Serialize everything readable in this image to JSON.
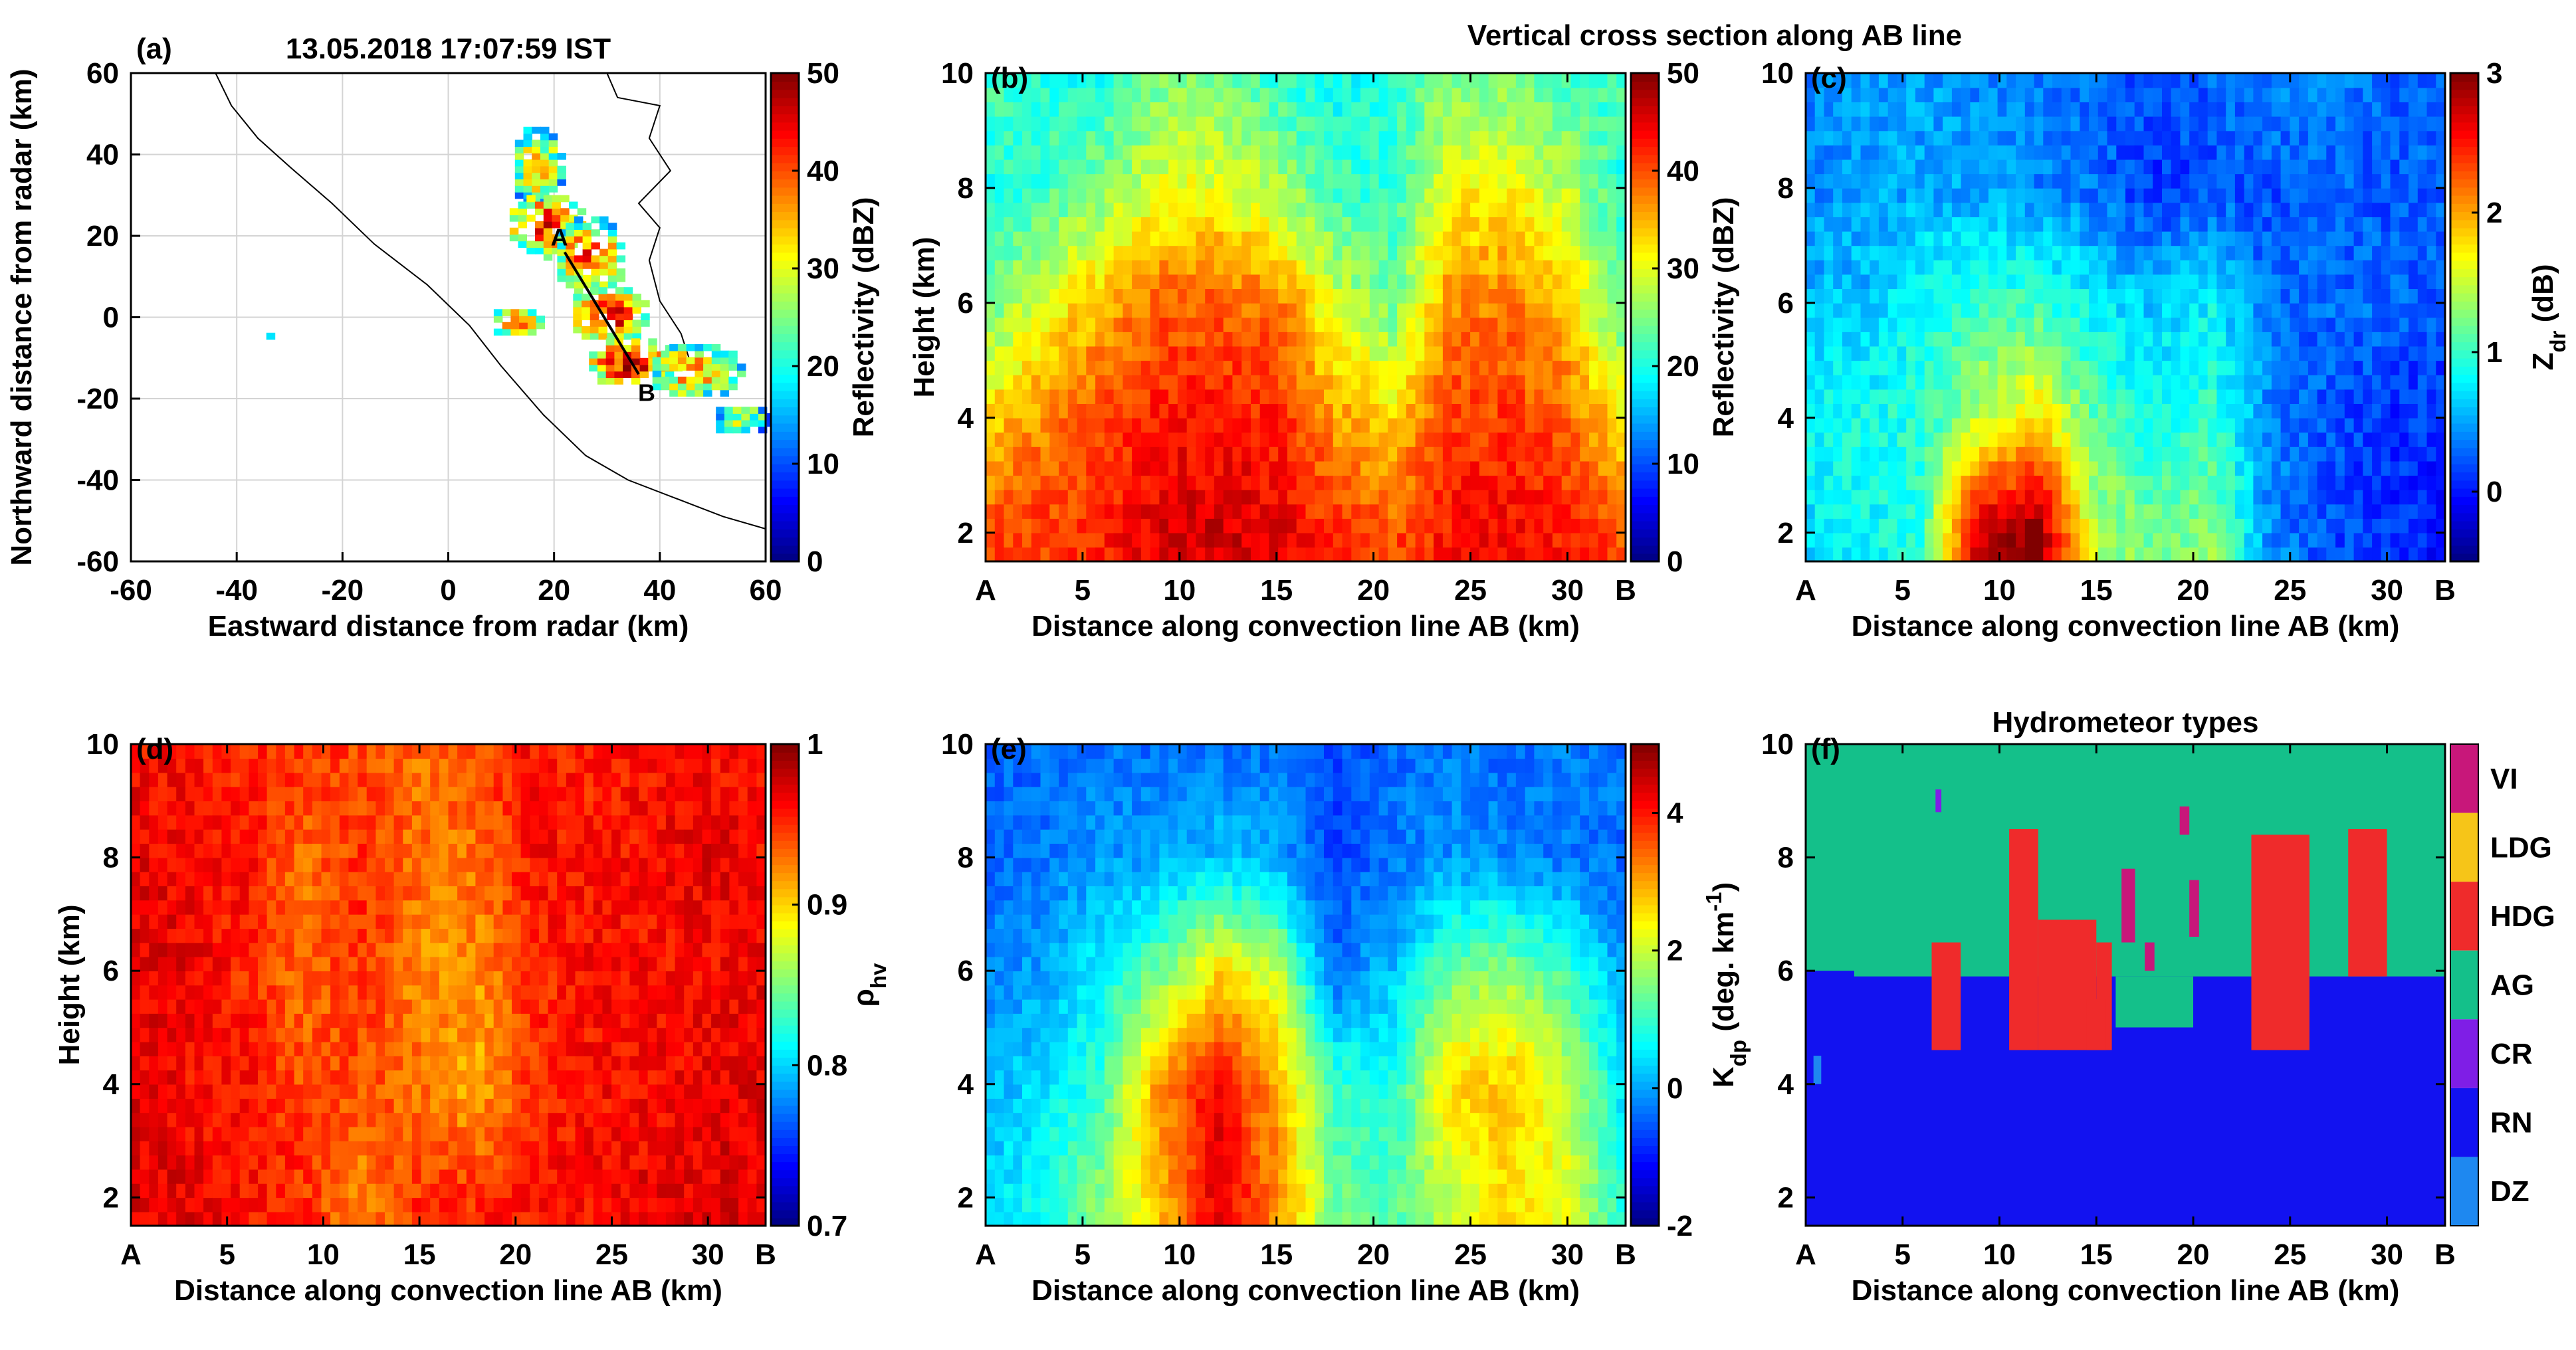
{
  "figure": {
    "cross_section_title": "Vertical cross section along AB line"
  },
  "chart_data": [
    {
      "panel": "(a)",
      "type": "heatmap",
      "title": "13.05.2018 17:07:59 IST",
      "xlabel": "Eastward distance from radar (km)",
      "ylabel": "Northward distance from radar (km)",
      "xlim": [
        -60,
        60
      ],
      "ylim": [
        -60,
        60
      ],
      "xticks": [
        -60,
        -40,
        -20,
        0,
        20,
        40,
        60
      ],
      "yticks": [
        -60,
        -40,
        -20,
        0,
        20,
        40,
        60
      ],
      "grid": true,
      "line_labels": [
        "A",
        "B"
      ],
      "line_endpoints": [
        [
          22,
          16
        ],
        [
          36,
          -14
        ]
      ],
      "colorbar": {
        "label": "Reflectivity (dBZ)",
        "min": 0,
        "max": 50,
        "ticks": [
          "0",
          "10",
          "20",
          "30",
          "40",
          "50"
        ]
      },
      "echoes": [
        {
          "x": 16,
          "y": 36,
          "rx": 5,
          "ry": 10,
          "dbz": 32
        },
        {
          "x": 18,
          "y": 22,
          "rx": 8,
          "ry": 8,
          "dbz": 40
        },
        {
          "x": 26,
          "y": 14,
          "rx": 7,
          "ry": 10,
          "dbz": 38
        },
        {
          "x": 12,
          "y": -2,
          "rx": 5,
          "ry": 4,
          "dbz": 36
        },
        {
          "x": 30,
          "y": 0,
          "rx": 8,
          "ry": 7,
          "dbz": 42
        },
        {
          "x": 34,
          "y": -12,
          "rx": 9,
          "ry": 6,
          "dbz": 44
        },
        {
          "x": 46,
          "y": -14,
          "rx": 9,
          "ry": 7,
          "dbz": 34
        },
        {
          "x": 55,
          "y": -26,
          "rx": 6,
          "ry": 4,
          "dbz": 26
        },
        {
          "x": -35,
          "y": -6,
          "rx": 1,
          "ry": 1,
          "dbz": 20
        }
      ]
    },
    {
      "panel": "(b)",
      "type": "heatmap",
      "variable": "Reflectivity",
      "xlabel": "Distance along convection line AB (km)",
      "ylabel": "Height (km)",
      "xlim": [
        0,
        33
      ],
      "ylim": [
        1.5,
        10
      ],
      "xticklabels": [
        "A",
        "5",
        "10",
        "15",
        "20",
        "25",
        "30",
        "B"
      ],
      "yticks": [
        2,
        4,
        6,
        8,
        10
      ],
      "colorbar": {
        "label": "Reflectivity (dBZ)",
        "min": 0,
        "max": 50,
        "ticks": [
          "0",
          "10",
          "20",
          "30",
          "40",
          "50"
        ]
      },
      "heights_km": [
        2,
        4,
        6,
        8,
        10
      ],
      "distance_km": [
        0,
        3,
        6,
        9,
        12,
        15,
        18,
        21,
        24,
        27,
        30,
        33
      ],
      "values": [
        [
          40,
          41,
          42,
          45,
          46,
          45,
          42,
          40,
          43,
          44,
          42,
          40
        ],
        [
          33,
          37,
          40,
          43,
          43,
          42,
          36,
          33,
          41,
          41,
          39,
          32
        ],
        [
          24,
          30,
          35,
          39,
          39,
          38,
          29,
          24,
          37,
          38,
          34,
          22
        ],
        [
          20,
          22,
          25,
          30,
          30,
          27,
          22,
          21,
          31,
          31,
          28,
          20
        ],
        [
          22,
          20,
          20,
          24,
          25,
          21,
          19,
          21,
          25,
          24,
          21,
          22
        ]
      ]
    },
    {
      "panel": "(c)",
      "type": "heatmap",
      "variable": "Zdr",
      "xlabel": "Distance along convection line AB (km)",
      "ylabel": "",
      "xlim": [
        0,
        33
      ],
      "ylim": [
        1.5,
        10
      ],
      "xticklabels": [
        "A",
        "5",
        "10",
        "15",
        "20",
        "25",
        "30",
        "B"
      ],
      "yticks": [
        2,
        4,
        6,
        8,
        10
      ],
      "colorbar": {
        "label": "Z",
        "label_sub": "dr",
        "label_unit": " (dB)",
        "min": -0.5,
        "max": 3,
        "ticks": [
          "0",
          "1",
          "2",
          "3"
        ]
      },
      "heights_km": [
        2,
        4,
        6,
        8,
        10
      ],
      "distance_km": [
        0,
        3,
        6,
        9,
        12,
        15,
        18,
        21,
        24,
        27,
        30,
        33
      ],
      "values": [
        [
          0.7,
          0.8,
          1.0,
          2.8,
          3.0,
          1.4,
          1.2,
          1.3,
          0.4,
          0.2,
          0.1,
          0.0
        ],
        [
          0.8,
          0.9,
          0.9,
          1.5,
          1.8,
          1.1,
          0.9,
          1.0,
          0.4,
          0.2,
          0.1,
          0.1
        ],
        [
          0.6,
          0.6,
          0.9,
          1.0,
          1.0,
          0.8,
          0.6,
          0.8,
          0.3,
          0.3,
          0.3,
          0.2
        ],
        [
          0.4,
          0.5,
          0.5,
          0.5,
          0.4,
          0.3,
          0.1,
          0.2,
          0.2,
          0.3,
          0.2,
          0.3
        ],
        [
          0.4,
          0.5,
          0.5,
          0.4,
          0.4,
          0.3,
          0.2,
          0.3,
          0.4,
          0.4,
          0.3,
          0.3
        ]
      ]
    },
    {
      "panel": "(d)",
      "type": "heatmap",
      "variable": "rho_hv",
      "xlabel": "Distance along convection line AB (km)",
      "ylabel": "Height (km)",
      "xlim": [
        0,
        33
      ],
      "ylim": [
        1.5,
        10
      ],
      "xticklabels": [
        "A",
        "5",
        "10",
        "15",
        "20",
        "25",
        "30",
        "B"
      ],
      "yticks": [
        2,
        4,
        6,
        8,
        10
      ],
      "colorbar": {
        "label": "ρ",
        "label_sub": "hv",
        "label_unit": "",
        "min": 0.7,
        "max": 1,
        "ticks": [
          "0.7",
          "0.8",
          "0.9",
          "1"
        ]
      },
      "heights_km": [
        2,
        4,
        6,
        8,
        10
      ],
      "distance_km": [
        0,
        3,
        6,
        9,
        12,
        15,
        18,
        21,
        24,
        27,
        30,
        33
      ],
      "values": [
        [
          0.97,
          0.97,
          0.96,
          0.95,
          0.92,
          0.95,
          0.95,
          0.96,
          0.96,
          0.97,
          0.97,
          0.97
        ],
        [
          0.97,
          0.96,
          0.96,
          0.94,
          0.94,
          0.93,
          0.91,
          0.95,
          0.96,
          0.96,
          0.97,
          0.97
        ],
        [
          0.97,
          0.97,
          0.95,
          0.93,
          0.95,
          0.92,
          0.92,
          0.95,
          0.96,
          0.96,
          0.96,
          0.97
        ],
        [
          0.97,
          0.96,
          0.96,
          0.93,
          0.95,
          0.93,
          0.93,
          0.96,
          0.96,
          0.96,
          0.97,
          0.96
        ],
        [
          0.96,
          0.96,
          0.95,
          0.95,
          0.94,
          0.93,
          0.94,
          0.96,
          0.95,
          0.96,
          0.96,
          0.96
        ]
      ]
    },
    {
      "panel": "(e)",
      "type": "heatmap",
      "variable": "Kdp",
      "xlabel": "Distance along convection line AB (km)",
      "ylabel": "",
      "xlim": [
        0,
        33
      ],
      "ylim": [
        1.5,
        10
      ],
      "xticklabels": [
        "A",
        "5",
        "10",
        "15",
        "20",
        "25",
        "30",
        "B"
      ],
      "yticks": [
        2,
        4,
        6,
        8,
        10
      ],
      "colorbar": {
        "label": "K",
        "label_sub": "dp",
        "label_unit": " (deg. km",
        "label_sup": "-1",
        "label_close": ")",
        "min": -2,
        "max": 5,
        "ticks": [
          "-2",
          "0",
          "2",
          "4"
        ]
      },
      "heights_km": [
        2,
        4,
        6,
        8,
        10
      ],
      "distance_km": [
        0,
        3,
        6,
        9,
        12,
        15,
        18,
        21,
        24,
        27,
        30,
        33
      ],
      "values": [
        [
          0.3,
          0.8,
          1.6,
          2.8,
          4.4,
          3.2,
          1.4,
          1.2,
          2.0,
          2.6,
          2.2,
          0.8
        ],
        [
          0.1,
          0.4,
          1.0,
          3.2,
          4.2,
          3.0,
          1.0,
          0.8,
          2.6,
          2.8,
          2.0,
          0.4
        ],
        [
          -0.2,
          0.0,
          0.6,
          1.4,
          2.6,
          2.0,
          -0.4,
          0.2,
          1.4,
          1.6,
          1.0,
          -0.1
        ],
        [
          -0.4,
          -0.3,
          -0.1,
          0.0,
          0.2,
          0.0,
          -0.7,
          -0.3,
          -0.1,
          -0.2,
          -0.3,
          -0.4
        ],
        [
          -0.5,
          -0.4,
          -0.3,
          -0.4,
          -0.3,
          -0.4,
          -0.6,
          -0.4,
          -0.3,
          -0.4,
          -0.3,
          -0.3
        ]
      ]
    },
    {
      "panel": "(f)",
      "type": "heatmap",
      "title": "Hydrometeor types",
      "xlabel": "Distance along convection line AB (km)",
      "ylabel": "",
      "xlim": [
        0,
        33
      ],
      "ylim": [
        1.5,
        10
      ],
      "xticklabels": [
        "A",
        "5",
        "10",
        "15",
        "20",
        "25",
        "30",
        "B"
      ],
      "yticks": [
        2,
        4,
        6,
        8,
        10
      ],
      "classes": [
        {
          "label": "VI",
          "color": "#c8177a"
        },
        {
          "label": "LDG",
          "color": "#f6c518"
        },
        {
          "label": "HDG",
          "color": "#ef2b2b"
        },
        {
          "label": "AG",
          "color": "#14c08a"
        },
        {
          "label": "CR",
          "color": "#7f1ee6"
        },
        {
          "label": "RN",
          "color": "#1212f0"
        },
        {
          "label": "DZ",
          "color": "#1e88f0"
        }
      ],
      "melting_layer_km": 5.9,
      "hdg_regions": [
        {
          "x0": 6.5,
          "x1": 8,
          "y0": 4.6,
          "y1": 6.5
        },
        {
          "x0": 10.5,
          "x1": 12,
          "y0": 4.6,
          "y1": 8.5
        },
        {
          "x0": 12,
          "x1": 15,
          "y0": 4.6,
          "y1": 6.9
        },
        {
          "x0": 15,
          "x1": 15.8,
          "y0": 4.6,
          "y1": 6.5
        },
        {
          "x0": 14.5,
          "x1": 15.5,
          "y0": 4.6,
          "y1": 5.5
        },
        {
          "x0": 23,
          "x1": 26,
          "y0": 4.6,
          "y1": 8.4
        },
        {
          "x0": 28,
          "x1": 30,
          "y0": 5.9,
          "y1": 8.5
        }
      ],
      "ag_below_regions": [
        {
          "x0": 16,
          "x1": 20,
          "y0": 5.0,
          "y1": 5.9
        }
      ],
      "vi_regions": [
        {
          "x0": 16.3,
          "x1": 17,
          "y0": 6.5,
          "y1": 7.8
        },
        {
          "x0": 17.5,
          "x1": 18,
          "y0": 6.0,
          "y1": 6.5
        },
        {
          "x0": 19.3,
          "x1": 19.8,
          "y0": 8.4,
          "y1": 8.9
        },
        {
          "x0": 19.8,
          "x1": 20.3,
          "y0": 6.6,
          "y1": 7.6
        }
      ],
      "cr_regions": [
        {
          "x0": 6.7,
          "x1": 7.0,
          "y0": 8.8,
          "y1": 9.2
        }
      ],
      "dz_regions": [
        {
          "x0": 0.4,
          "x1": 0.8,
          "y0": 4.0,
          "y1": 4.5
        }
      ],
      "rn_left_regions": [
        {
          "x0": 0,
          "x1": 2.5,
          "y0": 5.5,
          "y1": 6.0
        }
      ]
    }
  ]
}
